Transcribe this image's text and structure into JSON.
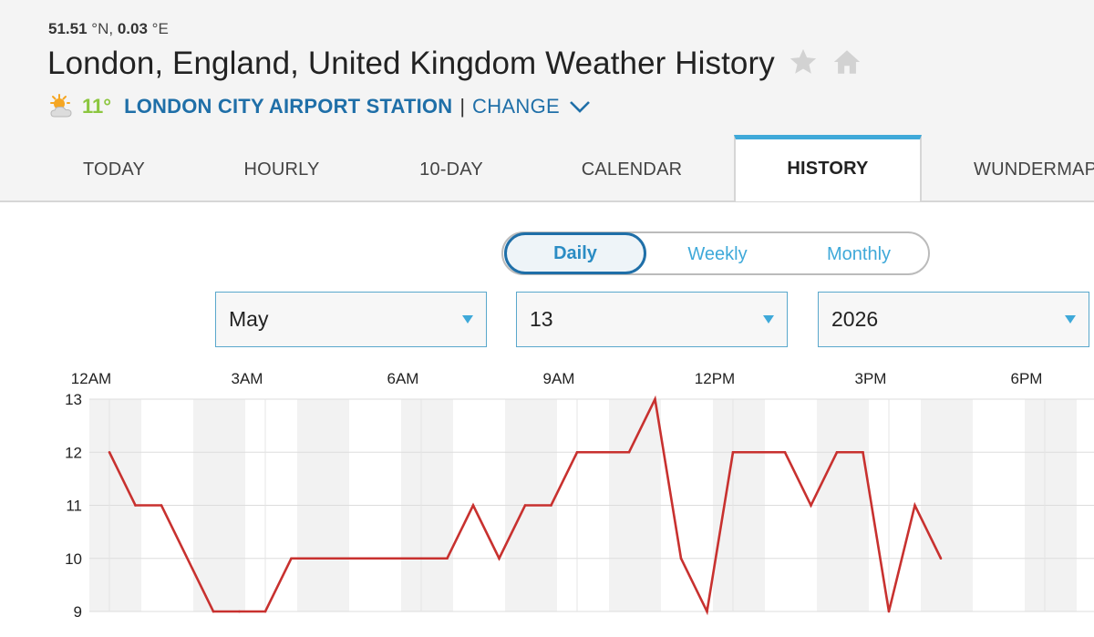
{
  "location": {
    "lat_value": "51.51",
    "lat_unit": "°N,",
    "lon_value": "0.03",
    "lon_unit": "°E",
    "title": "London, England, United Kingdom Weather History"
  },
  "current": {
    "temp": "11°",
    "station": "LONDON CITY AIRPORT STATION",
    "separator": "|",
    "change_label": "CHANGE",
    "icon": "partly-sunny-icon"
  },
  "tabs": [
    {
      "label": "TODAY"
    },
    {
      "label": "HOURLY"
    },
    {
      "label": "10-DAY"
    },
    {
      "label": "CALENDAR"
    },
    {
      "label": "HISTORY",
      "active": true
    },
    {
      "label": "WUNDERMAP"
    }
  ],
  "period_toggle": {
    "options": [
      "Daily",
      "Weekly",
      "Monthly"
    ],
    "selected": "Daily"
  },
  "date_selects": {
    "month": "May",
    "day": "13",
    "year": "2026"
  },
  "colors": {
    "accent": "#3fa9d9",
    "link": "#1f6fa8",
    "temp_green": "#8cc63f",
    "line": "#c8312f"
  },
  "chart_data": {
    "type": "line",
    "x_tick_labels": [
      "12AM",
      "3AM",
      "6AM",
      "9AM",
      "12PM",
      "3PM",
      "6PM"
    ],
    "y_tick_labels": [
      "13",
      "12",
      "11",
      "10",
      "9"
    ],
    "ylim": [
      9,
      13
    ],
    "x_unit": "hour of day",
    "grid": true,
    "series": [
      {
        "x": [
          0,
          0.5,
          1,
          2,
          2.5,
          3,
          3.5,
          4,
          5,
          6,
          6.5,
          7,
          7.5,
          8,
          8.5,
          9,
          9.5,
          10,
          10.5,
          11,
          11.5,
          12,
          12.5,
          13,
          13.5,
          14,
          14.5,
          15,
          15.5,
          16
        ],
        "y": [
          12,
          11,
          11,
          9,
          9,
          9,
          10,
          10,
          10,
          10,
          10,
          11,
          10,
          11,
          11,
          12,
          12,
          12,
          13,
          10,
          9,
          12,
          12,
          12,
          11,
          12,
          12,
          9,
          11,
          10
        ]
      }
    ]
  }
}
